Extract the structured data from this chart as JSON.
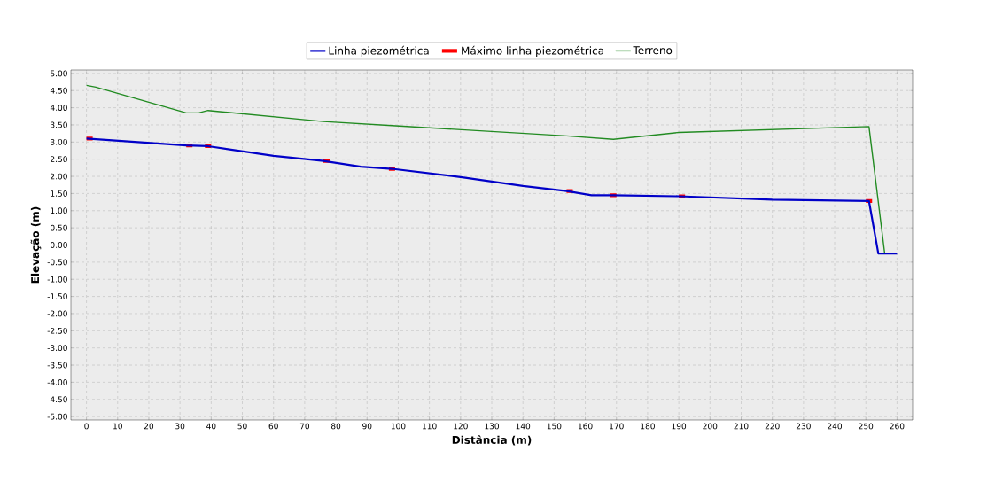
{
  "chart_data": {
    "type": "line",
    "xlabel": "Distância (m)",
    "ylabel": "Elevação (m)",
    "xlim": [
      -5,
      265
    ],
    "ylim": [
      -5.1,
      5.1
    ],
    "xticks": [
      0,
      10,
      20,
      30,
      40,
      50,
      60,
      70,
      80,
      90,
      100,
      110,
      120,
      130,
      140,
      150,
      160,
      170,
      180,
      190,
      200,
      210,
      220,
      230,
      240,
      250,
      260
    ],
    "yticks": [
      {
        "value": 5,
        "label": "5.00"
      },
      {
        "value": 4.5,
        "label": "4.50"
      },
      {
        "value": 4,
        "label": "4.00"
      },
      {
        "value": 3.5,
        "label": "3.50"
      },
      {
        "value": 3,
        "label": "3.00"
      },
      {
        "value": 2.5,
        "label": "2.50"
      },
      {
        "value": 2,
        "label": "2.00"
      },
      {
        "value": 1.5,
        "label": "1.50"
      },
      {
        "value": 1,
        "label": "1.00"
      },
      {
        "value": 0.5,
        "label": "0.50"
      },
      {
        "value": 0,
        "label": "0.00"
      },
      {
        "value": -0.5,
        "label": "-0.50"
      },
      {
        "value": -1,
        "label": "-1.00"
      },
      {
        "value": -1.5,
        "label": "-1.50"
      },
      {
        "value": -2,
        "label": "-2.00"
      },
      {
        "value": -2.5,
        "label": "-2.50"
      },
      {
        "value": -3,
        "label": "-3.00"
      },
      {
        "value": -3.5,
        "label": "-3.50"
      },
      {
        "value": -4,
        "label": "-4.00"
      },
      {
        "value": -4.5,
        "label": "-4.50"
      },
      {
        "value": -5,
        "label": "-5.00"
      }
    ],
    "grid": true,
    "legend": "top",
    "series": [
      {
        "name": "Linha piezométrica",
        "color": "#0000c8",
        "x": [
          0,
          32,
          39,
          60,
          76,
          88,
          98,
          120,
          140,
          154,
          162,
          169,
          190,
          220,
          251,
          254,
          260
        ],
        "values": [
          3.1,
          2.9,
          2.88,
          2.6,
          2.45,
          2.28,
          2.22,
          1.98,
          1.72,
          1.57,
          1.45,
          1.45,
          1.42,
          1.32,
          1.28,
          -0.25,
          -0.25
        ]
      },
      {
        "name": "Máximo linha piezométrica",
        "color": "#ff0000",
        "x": [
          0,
          2,
          17,
          32,
          34,
          36,
          38,
          40,
          58,
          76,
          78,
          88,
          97,
          99,
          126,
          154,
          156,
          162,
          168,
          170,
          180,
          190,
          192,
          220,
          250,
          252
        ],
        "values": [
          3.1,
          3.1,
          null,
          2.9,
          2.9,
          null,
          2.88,
          2.88,
          null,
          2.45,
          2.45,
          null,
          2.22,
          2.22,
          null,
          1.57,
          1.57,
          null,
          1.45,
          1.45,
          null,
          1.42,
          1.42,
          null,
          1.28,
          1.28
        ]
      },
      {
        "name": "Terreno",
        "color": "#228b22",
        "x": [
          0,
          3,
          32,
          36,
          39,
          76,
          98,
          154,
          169,
          190,
          251,
          256
        ],
        "values": [
          4.65,
          4.6,
          3.85,
          3.85,
          3.92,
          3.6,
          3.48,
          3.18,
          3.08,
          3.28,
          3.45,
          -0.22
        ]
      }
    ]
  }
}
